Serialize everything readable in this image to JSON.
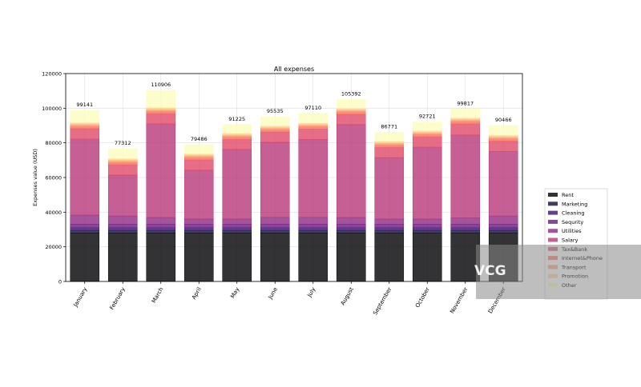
{
  "chart_data": {
    "type": "bar",
    "stacked": true,
    "title": "All expenses",
    "xlabel": "",
    "ylabel": "Expenses value (USD)",
    "ylim": [
      0,
      120000
    ],
    "yticks": [
      0,
      20000,
      40000,
      60000,
      80000,
      100000,
      120000
    ],
    "grid": true,
    "legend_position": "right-outside",
    "categories": [
      "January",
      "February",
      "March",
      "April",
      "May",
      "June",
      "July",
      "August",
      "September",
      "October",
      "November",
      "December"
    ],
    "total_labels": [
      "99141",
      "77312",
      "110906",
      "79486",
      "91225",
      "95535",
      "97110",
      "105392",
      "86771",
      "92721",
      "99817",
      "90466"
    ],
    "series": [
      {
        "name": "Rent",
        "color": "#000004",
        "values": [
          28000,
          28000,
          28000,
          28000,
          28000,
          28000,
          28000,
          28000,
          28000,
          28000,
          28000,
          28000
        ]
      },
      {
        "name": "Marketing",
        "color": "#140e36",
        "values": [
          1500,
          1500,
          1500,
          1500,
          1500,
          1500,
          1500,
          1500,
          1500,
          1500,
          1500,
          1500
        ]
      },
      {
        "name": "Cleaning",
        "color": "#3b0f70",
        "values": [
          1500,
          1500,
          1500,
          1500,
          1500,
          1500,
          1500,
          1500,
          1500,
          1500,
          1500,
          1500
        ]
      },
      {
        "name": "Sequrity",
        "color": "#641a80",
        "values": [
          2000,
          2000,
          2000,
          2000,
          2000,
          2000,
          2000,
          2000,
          2000,
          2000,
          2000,
          2000
        ]
      },
      {
        "name": "Utilities",
        "color": "#8c2981",
        "values": [
          5300,
          4800,
          3900,
          3000,
          3000,
          4000,
          4000,
          3900,
          3000,
          3000,
          3800,
          4800
        ]
      },
      {
        "name": "Salary",
        "color": "#b73779",
        "values": [
          43800,
          23600,
          54000,
          28200,
          40200,
          43300,
          45000,
          53600,
          35500,
          41500,
          47700,
          37200
        ]
      },
      {
        "name": "Tax&Bank",
        "color": "#de4968",
        "values": [
          6100,
          6000,
          6000,
          6000,
          5900,
          6000,
          6000,
          6000,
          6000,
          6000,
          6500,
          6000
        ]
      },
      {
        "name": "Internet&Phone",
        "color": "#f7705c",
        "values": [
          1500,
          1500,
          1500,
          1500,
          1500,
          1500,
          1500,
          1500,
          1500,
          1500,
          1500,
          1500
        ]
      },
      {
        "name": "Transport",
        "color": "#fe9f6d",
        "values": [
          1000,
          1000,
          1000,
          1000,
          1000,
          1000,
          1000,
          1000,
          1000,
          1000,
          1000,
          1000
        ]
      },
      {
        "name": "Promotion",
        "color": "#fecf92",
        "values": [
          1000,
          1000,
          1000,
          1000,
          1000,
          1000,
          1000,
          1000,
          1000,
          1000,
          1000,
          1000
        ]
      },
      {
        "name": "Other",
        "color": "#fcfdbf",
        "values": [
          7100,
          5700,
          9900,
          5200,
          4900,
          5300,
          5500,
          5000,
          5000,
          5000,
          5000,
          5500
        ]
      }
    ]
  },
  "watermark": "VCG"
}
